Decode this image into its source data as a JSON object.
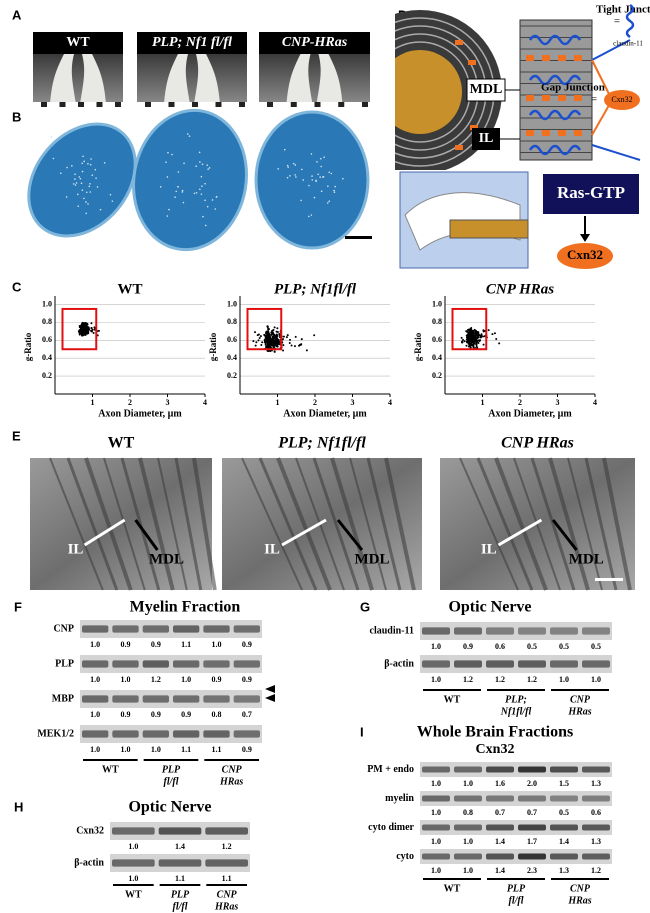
{
  "panels": {
    "A": {
      "label": "A",
      "titles": [
        "WT",
        "PLP; Nf1 fl/fl",
        "CNP-HRas"
      ]
    },
    "B": {
      "label": "B"
    },
    "C": {
      "label": "C",
      "titles": [
        "WT",
        "PLP; Nf1fl/fl",
        "CNP HRas"
      ],
      "y_label": "g-Ratio",
      "x_label": "Axon Diameter, µm",
      "yticks": [
        0.2,
        0.4,
        0.6,
        0.8,
        {
          "value": 1,
          "label": "1.0"
        }
      ],
      "xticks": [
        1,
        2,
        3,
        4
      ],
      "xlim": [
        0,
        4
      ],
      "ylim": [
        0,
        1.05
      ]
    },
    "D": {
      "label": "D",
      "tight_junction": "Tight Junction",
      "claudin": "claudin-11",
      "gap_junction": "Gap Junction",
      "cxn32_icon": "Cxn32",
      "equals": "=",
      "mdl": "MDL",
      "il": "IL",
      "ras": "Ras-GTP",
      "cxn32": "Cxn32"
    },
    "E": {
      "label": "E",
      "titles": [
        "WT",
        "PLP; Nf1fl/fl",
        "CNP HRas"
      ],
      "il": "IL",
      "mdl": "MDL"
    },
    "F": {
      "label": "F",
      "title": "Myelin Fraction",
      "rows": [
        {
          "name": "CNP",
          "values": [
            "1.0",
            "0.9",
            "0.9",
            "1.1",
            "1.0",
            "0.9"
          ]
        },
        {
          "name": "PLP",
          "values": [
            "1.0",
            "1.0",
            "1.2",
            "1.0",
            "0.9",
            "0.9"
          ]
        },
        {
          "name": "MBP",
          "values": [
            "1.0",
            "0.9",
            "0.9",
            "0.9",
            "0.8",
            "0.7"
          ]
        },
        {
          "name": "MEK1/2",
          "values": [
            "1.0",
            "1.0",
            "1.0",
            "1.1",
            "1.1",
            "0.9"
          ]
        }
      ],
      "groups": [
        [
          "WT"
        ],
        [
          "PLP",
          "fl/fl"
        ],
        [
          "CNP",
          "HRas"
        ]
      ]
    },
    "G": {
      "label": "G",
      "title": "Optic Nerve",
      "rows": [
        {
          "name": "claudin-11",
          "values": [
            "1.0",
            "0.9",
            "0.6",
            "0.5",
            "0.5",
            "0.5"
          ]
        },
        {
          "name": "β-actin",
          "values": [
            "1.0",
            "1.2",
            "1.2",
            "1.2",
            "1.0",
            "1.0"
          ]
        }
      ],
      "groups": [
        [
          "WT"
        ],
        [
          "PLP;",
          "Nf1fl/fl"
        ],
        [
          "CNP",
          "HRas"
        ]
      ]
    },
    "H": {
      "label": "H",
      "title": "Optic Nerve",
      "rows": [
        {
          "name": "Cxn32",
          "values": [
            "1.0",
            "1.4",
            "1.2"
          ]
        },
        {
          "name": "β-actin",
          "values": [
            "1.0",
            "1.1",
            "1.1"
          ]
        }
      ],
      "groups": [
        [
          "WT"
        ],
        [
          "PLP",
          "fl/fl"
        ],
        [
          "CNP",
          "HRas"
        ]
      ]
    },
    "I": {
      "label": "I",
      "title": "Whole Brain Fractions",
      "subtitle": "Cxn32",
      "rows": [
        {
          "name": "PM + endo",
          "values": [
            "1.0",
            "1.0",
            "1.6",
            "2.0",
            "1.5",
            "1.3"
          ]
        },
        {
          "name": "myelin",
          "values": [
            "1.0",
            "0.8",
            "0.7",
            "0.7",
            "0.5",
            "0.6"
          ]
        },
        {
          "name": "cyto dimer",
          "values": [
            "1.0",
            "1.0",
            "1.4",
            "1.7",
            "1.4",
            "1.3"
          ]
        },
        {
          "name": "cyto",
          "values": [
            "1.0",
            "1.0",
            "1.4",
            "2.3",
            "1.3",
            "1.2"
          ]
        }
      ],
      "groups": [
        [
          "WT"
        ],
        [
          "PLP",
          "fl/fl"
        ],
        [
          "CNP",
          "HRas"
        ]
      ]
    }
  }
}
